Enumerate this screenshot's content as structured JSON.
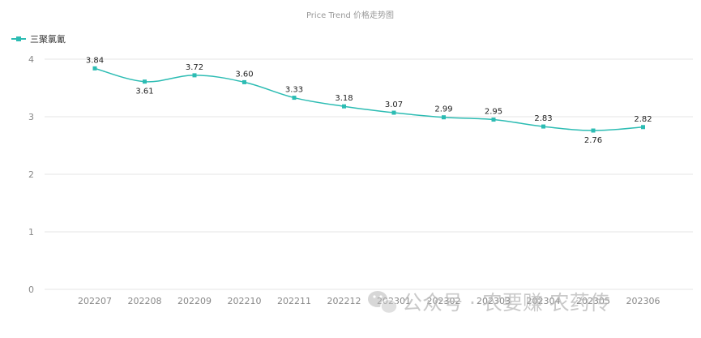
{
  "title": "Price Trend 价格走势图",
  "watermark": "公众号 · 农要赚 农药传",
  "chart_data": {
    "type": "line",
    "title": "Price Trend 价格走势图",
    "categories": [
      "202207",
      "202208",
      "202209",
      "202210",
      "202211",
      "202212",
      "202301",
      "202302",
      "202303",
      "202304",
      "202305",
      "202306"
    ],
    "series": [
      {
        "name": "三聚氯氰",
        "color": "#2cbcb3",
        "values": [
          3.84,
          3.61,
          3.72,
          3.6,
          3.33,
          3.18,
          3.07,
          2.99,
          2.95,
          2.83,
          2.76,
          2.82
        ]
      }
    ],
    "ylim": [
      0,
      4
    ],
    "yticks": [
      "0",
      "1",
      "2",
      "3",
      "4"
    ],
    "grid": true,
    "legend": "top-left",
    "smooth": true
  }
}
